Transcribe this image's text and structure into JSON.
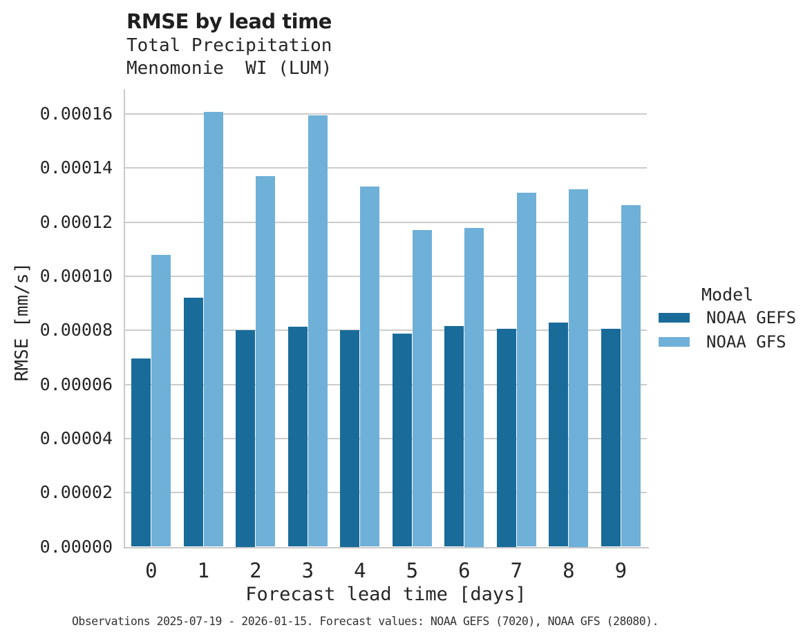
{
  "header": {
    "title": "RMSE by lead time",
    "subtitle_line1": "Total Precipitation",
    "subtitle_line2": "Menomonie  WI (LUM)"
  },
  "chart_data": {
    "type": "bar",
    "title": "RMSE by lead time",
    "subtitle": [
      "Total Precipitation",
      "Menomonie  WI (LUM)"
    ],
    "xlabel": "Forecast lead time [days]",
    "ylabel": "RMSE [mm/s]",
    "categories": [
      "0",
      "1",
      "2",
      "3",
      "4",
      "5",
      "6",
      "7",
      "8",
      "9"
    ],
    "series": [
      {
        "name": "NOAA GEFS",
        "color": "#196b9a",
        "values": [
          6.95e-05,
          9.2e-05,
          8.02e-05,
          8.13e-05,
          8.02e-05,
          7.87e-05,
          8.15e-05,
          8.07e-05,
          8.28e-05,
          8.05e-05
        ]
      },
      {
        "name": "NOAA GFS",
        "color": "#6fb0d8",
        "values": [
          0.0001078,
          0.0001608,
          0.0001371,
          0.0001594,
          0.0001333,
          0.000117,
          0.000118,
          0.0001308,
          0.0001323,
          0.0001264
        ]
      }
    ],
    "ylim": [
      0,
      0.0001692
    ],
    "yticks": {
      "values": [
        0.0,
        2e-05,
        4e-05,
        6e-05,
        8e-05,
        0.0001,
        0.00012,
        0.00014,
        0.00016
      ],
      "labels": [
        "0.00000",
        "0.00002",
        "0.00004",
        "0.00006",
        "0.00008",
        "0.00010",
        "0.00012",
        "0.00014",
        "0.00016"
      ]
    },
    "grid": "horizontal",
    "legend_title": "Model",
    "legend_position": "right"
  },
  "legend": {
    "title": "Model",
    "items": [
      {
        "label": "NOAA GEFS",
        "color": "#196b9a"
      },
      {
        "label": "NOAA GFS",
        "color": "#6fb0d8"
      }
    ]
  },
  "caption": "Observations 2025-07-19 - 2026-01-15. Forecast values: NOAA GEFS (7020), NOAA GFS (28080)."
}
